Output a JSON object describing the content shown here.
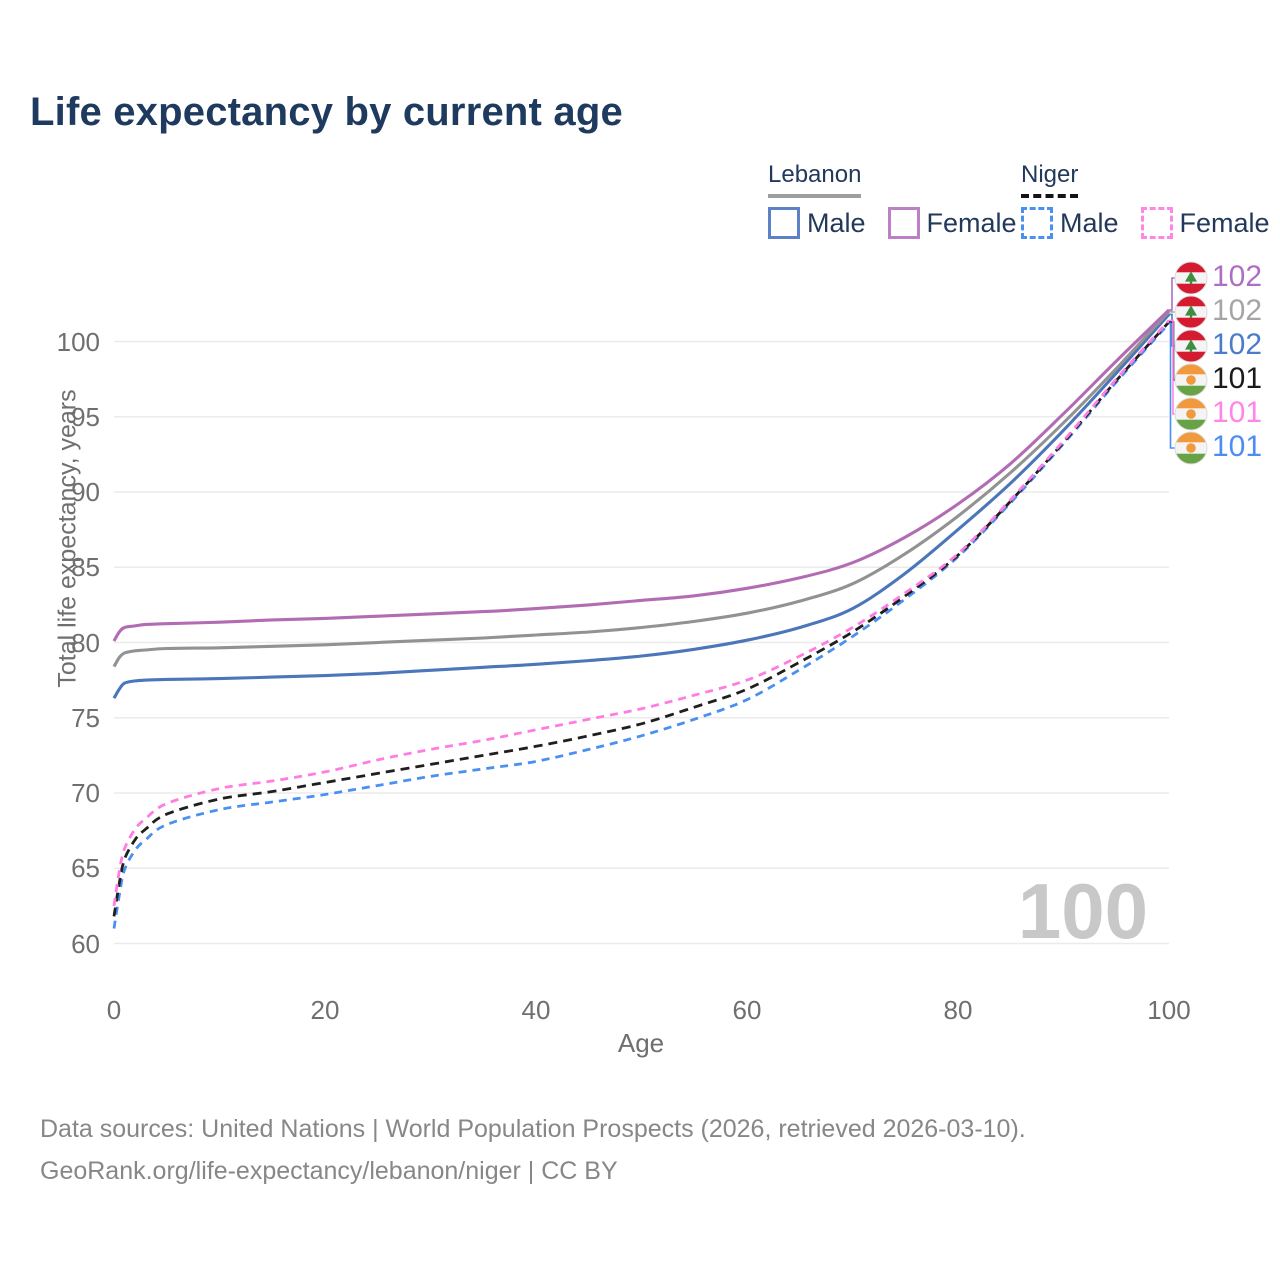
{
  "title": "Life expectancy by current age",
  "legend": {
    "groups": [
      {
        "label": "Lebanon",
        "line_style": "solid",
        "underline_color": "#9e9e9e",
        "items": [
          {
            "label": "Male",
            "color": "#5b82c6",
            "dashed": false
          },
          {
            "label": "Female",
            "color": "#bc80c4",
            "dashed": false
          }
        ]
      },
      {
        "label": "Niger",
        "line_style": "dashed",
        "underline_color": "#141414",
        "items": [
          {
            "label": "Male",
            "color": "#4a90f2",
            "dashed": true
          },
          {
            "label": "Female",
            "color": "#ff87e4",
            "dashed": true
          }
        ]
      }
    ]
  },
  "axes": {
    "y": {
      "label": "Total life expectancy, years",
      "ticks": [
        60,
        65,
        70,
        75,
        80,
        85,
        90,
        95,
        100
      ]
    },
    "x": {
      "label": "Age",
      "ticks": [
        0,
        20,
        40,
        60,
        80,
        100
      ]
    }
  },
  "watermark": "100",
  "footer": {
    "line1": "Data sources: United Nations | World Population Prospects (2026, retrieved 2026-03-10).",
    "line2": "GeoRank.org/life-expectancy/lebanon/niger | CC BY"
  },
  "end_labels": [
    {
      "series": "Lebanon Female",
      "value": "102",
      "flag": "lebanon",
      "color": "#af6ec3"
    },
    {
      "series": "Lebanon Both sexes",
      "value": "102",
      "flag": "lebanon",
      "color": "#a5a5a5"
    },
    {
      "series": "Lebanon Male",
      "value": "102",
      "flag": "lebanon",
      "color": "#4a7cc9"
    },
    {
      "series": "Niger Both sexes",
      "value": "101",
      "flag": "niger",
      "color": "#1b1b1b"
    },
    {
      "series": "Niger Female",
      "value": "101",
      "flag": "niger",
      "color": "#ff85e6"
    },
    {
      "series": "Niger Male",
      "value": "101",
      "flag": "niger",
      "color": "#4a8ef5"
    }
  ],
  "chart_data": {
    "type": "line",
    "title": "Life expectancy by current age",
    "xlabel": "Age",
    "ylabel": "Total life expectancy, years",
    "xlim": [
      0,
      100
    ],
    "ylim": [
      60,
      103
    ],
    "grid": "horizontal",
    "legend_position": "top-right",
    "x": [
      0,
      0.5,
      1,
      2,
      3,
      5,
      10,
      15,
      20,
      25,
      30,
      35,
      40,
      45,
      50,
      55,
      60,
      65,
      70,
      75,
      80,
      85,
      90,
      95,
      100
    ],
    "series": [
      {
        "name": "Niger Male",
        "country": "Niger",
        "sex": "Male",
        "color": "#4a90f0",
        "dash": true,
        "values": [
          61.0,
          63.2,
          64.9,
          66.2,
          66.9,
          67.9,
          68.9,
          69.4,
          69.9,
          70.5,
          71.1,
          71.6,
          72.1,
          72.9,
          73.8,
          74.9,
          76.2,
          78.2,
          80.4,
          82.9,
          85.7,
          89.3,
          93.2,
          97.3,
          101.2
        ]
      },
      {
        "name": "Niger Both sexes",
        "country": "Niger",
        "sex": "Both",
        "color": "#1f1f1f",
        "dash": true,
        "values": [
          61.8,
          64.0,
          65.6,
          66.9,
          67.6,
          68.6,
          69.6,
          70.1,
          70.7,
          71.3,
          71.9,
          72.5,
          73.1,
          73.8,
          74.6,
          75.7,
          76.9,
          78.7,
          80.7,
          83.1,
          85.8,
          89.4,
          93.3,
          97.4,
          101.3
        ]
      },
      {
        "name": "Niger Female",
        "country": "Niger",
        "sex": "Female",
        "color": "#ff7de2",
        "dash": true,
        "values": [
          62.5,
          64.8,
          66.3,
          67.6,
          68.3,
          69.3,
          70.3,
          70.8,
          71.4,
          72.2,
          72.9,
          73.5,
          74.2,
          74.9,
          75.6,
          76.5,
          77.5,
          79.1,
          81.0,
          83.3,
          85.9,
          89.5,
          93.4,
          97.5,
          101.4
        ]
      },
      {
        "name": "Lebanon Male",
        "country": "Lebanon",
        "sex": "Male",
        "color": "#4c76ba",
        "dash": false,
        "values": [
          76.3,
          76.9,
          77.3,
          77.45,
          77.5,
          77.55,
          77.6,
          77.7,
          77.8,
          77.95,
          78.15,
          78.35,
          78.55,
          78.8,
          79.1,
          79.55,
          80.15,
          81.0,
          82.25,
          84.6,
          87.5,
          90.6,
          94.1,
          97.9,
          101.8
        ]
      },
      {
        "name": "Lebanon Both sexes",
        "country": "Lebanon",
        "sex": "Both",
        "color": "#929292",
        "dash": false,
        "values": [
          78.4,
          79.0,
          79.3,
          79.45,
          79.5,
          79.6,
          79.65,
          79.75,
          79.85,
          80.0,
          80.15,
          80.3,
          80.5,
          80.7,
          81.0,
          81.4,
          81.95,
          82.75,
          83.9,
          85.9,
          88.4,
          91.3,
          94.6,
          98.2,
          102.0
        ]
      },
      {
        "name": "Lebanon Female",
        "country": "Lebanon",
        "sex": "Female",
        "color": "#b26cb4",
        "dash": false,
        "values": [
          80.1,
          80.7,
          81.0,
          81.1,
          81.2,
          81.25,
          81.35,
          81.5,
          81.6,
          81.75,
          81.9,
          82.05,
          82.25,
          82.5,
          82.8,
          83.1,
          83.6,
          84.3,
          85.3,
          87.0,
          89.2,
          91.9,
          95.2,
          98.7,
          102.1
        ]
      }
    ]
  }
}
